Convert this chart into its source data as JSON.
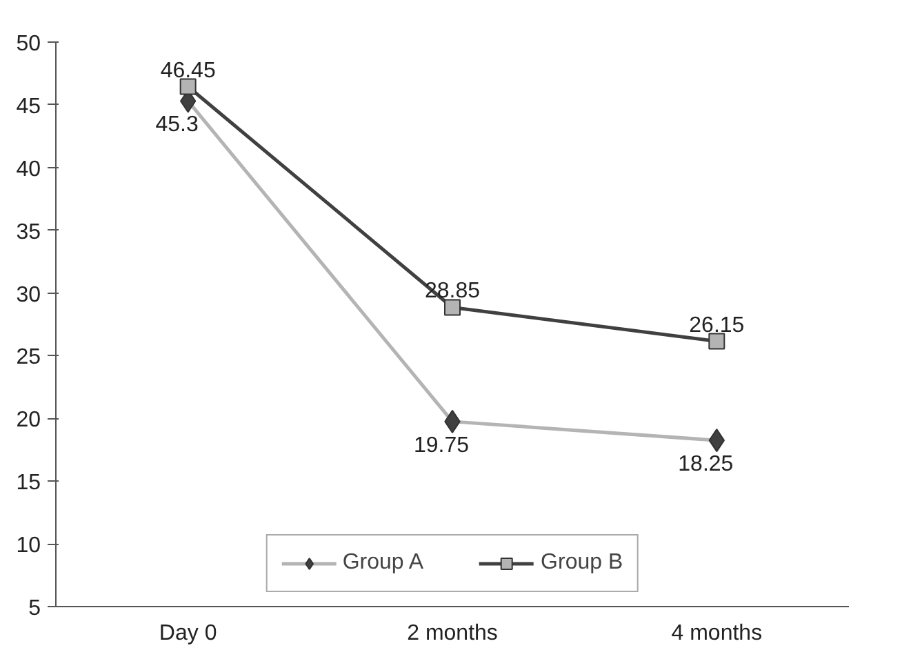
{
  "chart_data": {
    "type": "line",
    "categories": [
      "Day 0",
      "2 months",
      "4 months"
    ],
    "series": [
      {
        "name": "Group A",
        "color": "#b4b4b4",
        "marker": "diamond",
        "values": [
          45.3,
          19.75,
          18.25
        ]
      },
      {
        "name": "Group B",
        "color": "#404040",
        "marker": "square",
        "values": [
          46.45,
          28.85,
          26.15
        ]
      }
    ],
    "ylim": [
      5,
      50
    ],
    "yticks": [
      5,
      10,
      15,
      20,
      25,
      30,
      35,
      40,
      45,
      50
    ],
    "grid": false,
    "legend": "bottom",
    "data_labels": true
  }
}
